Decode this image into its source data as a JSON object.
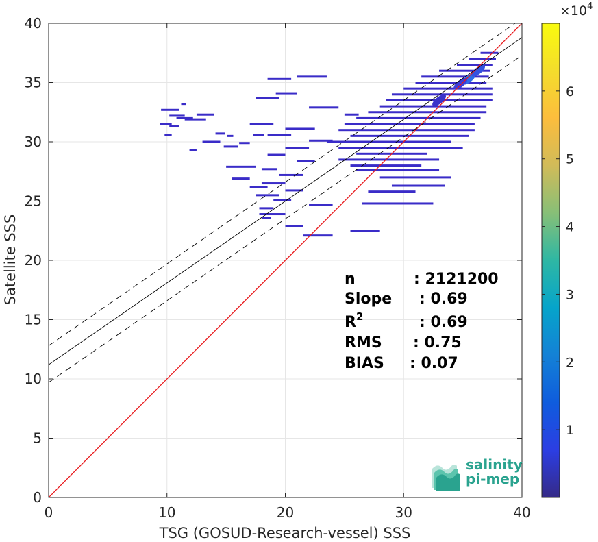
{
  "chart_data": {
    "type": "heatmap",
    "title": "",
    "xlabel": "TSG (GOSUD-Research-vessel) SSS",
    "ylabel": "Satellite SSS",
    "xlim": [
      0,
      40
    ],
    "ylim": [
      0,
      40
    ],
    "x_ticks": [
      "0",
      "10",
      "20",
      "30",
      "40"
    ],
    "y_ticks": [
      "0",
      "5",
      "10",
      "15",
      "20",
      "25",
      "30",
      "35",
      "40"
    ],
    "grid": true,
    "colormap": "parula",
    "colorbar": {
      "range": [
        0,
        70000
      ],
      "ticks": [
        "1",
        "2",
        "3",
        "4",
        "5",
        "6"
      ],
      "tick_values": [
        10000,
        20000,
        30000,
        40000,
        50000,
        60000
      ],
      "exponent_label": "×10",
      "exponent_power": "4"
    },
    "lines": [
      {
        "name": "identity",
        "slope": 1.0,
        "intercept": 0.0,
        "color": "#e8191c",
        "style": "solid"
      },
      {
        "name": "regression",
        "slope": 0.69,
        "intercept": 11.2,
        "color": "#000000",
        "style": "solid"
      },
      {
        "name": "regression+rms",
        "slope": 0.69,
        "intercept": 12.8,
        "color": "#000000",
        "style": "dashed"
      },
      {
        "name": "regression-rms",
        "slope": 0.69,
        "intercept": 9.7,
        "color": "#000000",
        "style": "dashed"
      }
    ],
    "density_segments": [
      {
        "y": 32.2,
        "x0": 10.2,
        "x1": 11.5
      },
      {
        "y": 32.7,
        "x0": 9.5,
        "x1": 11.0
      },
      {
        "y": 31.9,
        "x0": 11.5,
        "x1": 13.3
      },
      {
        "y": 32.0,
        "x0": 10.8,
        "x1": 12.2
      },
      {
        "y": 31.5,
        "x0": 9.4,
        "x1": 10.4
      },
      {
        "y": 33.2,
        "x0": 11.2,
        "x1": 11.6
      },
      {
        "y": 31.3,
        "x0": 10.2,
        "x1": 11.0
      },
      {
        "y": 32.3,
        "x0": 12.5,
        "x1": 14.0
      },
      {
        "y": 30.7,
        "x0": 14.1,
        "x1": 14.9
      },
      {
        "y": 30.6,
        "x0": 17.3,
        "x1": 18.2
      },
      {
        "y": 30.6,
        "x0": 9.8,
        "x1": 10.4
      },
      {
        "y": 30.5,
        "x0": 15.1,
        "x1": 15.6
      },
      {
        "y": 30.0,
        "x0": 13.0,
        "x1": 14.5
      },
      {
        "y": 29.9,
        "x0": 16.1,
        "x1": 17.0
      },
      {
        "y": 29.6,
        "x0": 14.8,
        "x1": 16.0
      },
      {
        "y": 29.3,
        "x0": 11.9,
        "x1": 12.5
      },
      {
        "y": 35.3,
        "x0": 18.5,
        "x1": 20.5
      },
      {
        "y": 35.5,
        "x0": 21.0,
        "x1": 23.5
      },
      {
        "y": 34.1,
        "x0": 19.2,
        "x1": 21.0
      },
      {
        "y": 33.7,
        "x0": 17.5,
        "x1": 19.5
      },
      {
        "y": 32.9,
        "x0": 22.0,
        "x1": 24.5
      },
      {
        "y": 32.3,
        "x0": 25.0,
        "x1": 26.2
      },
      {
        "y": 31.5,
        "x0": 17.0,
        "x1": 19.0
      },
      {
        "y": 31.1,
        "x0": 20.0,
        "x1": 22.5
      },
      {
        "y": 30.6,
        "x0": 18.5,
        "x1": 20.5
      },
      {
        "y": 30.1,
        "x0": 22.0,
        "x1": 24.0
      },
      {
        "y": 29.5,
        "x0": 20.0,
        "x1": 22.0
      },
      {
        "y": 28.9,
        "x0": 18.5,
        "x1": 20.0
      },
      {
        "y": 28.4,
        "x0": 21.0,
        "x1": 22.5
      },
      {
        "y": 27.9,
        "x0": 15.0,
        "x1": 17.5
      },
      {
        "y": 27.7,
        "x0": 18.0,
        "x1": 19.3
      },
      {
        "y": 27.2,
        "x0": 19.5,
        "x1": 21.5
      },
      {
        "y": 26.9,
        "x0": 15.5,
        "x1": 17.0
      },
      {
        "y": 26.5,
        "x0": 18.0,
        "x1": 20.0
      },
      {
        "y": 26.2,
        "x0": 17.0,
        "x1": 18.5
      },
      {
        "y": 25.9,
        "x0": 20.0,
        "x1": 21.5
      },
      {
        "y": 25.5,
        "x0": 17.5,
        "x1": 19.5
      },
      {
        "y": 25.1,
        "x0": 19.0,
        "x1": 20.5
      },
      {
        "y": 24.7,
        "x0": 22.0,
        "x1": 24.0
      },
      {
        "y": 24.4,
        "x0": 17.8,
        "x1": 19.0
      },
      {
        "y": 23.9,
        "x0": 17.8,
        "x1": 20.0
      },
      {
        "y": 23.6,
        "x0": 18.0,
        "x1": 18.8
      },
      {
        "y": 22.9,
        "x0": 20.0,
        "x1": 21.5
      },
      {
        "y": 22.1,
        "x0": 21.5,
        "x1": 24.0
      },
      {
        "y": 22.5,
        "x0": 25.5,
        "x1": 28.0
      },
      {
        "y": 24.8,
        "x0": 26.5,
        "x1": 32.5
      },
      {
        "y": 25.8,
        "x0": 27.0,
        "x1": 31.0
      },
      {
        "y": 26.3,
        "x0": 29.0,
        "x1": 33.5
      },
      {
        "y": 27.0,
        "x0": 28.0,
        "x1": 34.0
      },
      {
        "y": 27.6,
        "x0": 26.0,
        "x1": 33.0
      },
      {
        "y": 28.0,
        "x0": 25.5,
        "x1": 31.5
      },
      {
        "y": 28.5,
        "x0": 24.5,
        "x1": 33.0
      },
      {
        "y": 29.0,
        "x0": 26.0,
        "x1": 32.0
      },
      {
        "y": 29.5,
        "x0": 24.5,
        "x1": 35.0
      },
      {
        "y": 30.0,
        "x0": 23.5,
        "x1": 34.0
      },
      {
        "y": 30.5,
        "x0": 25.5,
        "x1": 35.5
      },
      {
        "y": 31.0,
        "x0": 24.5,
        "x1": 36.0
      },
      {
        "y": 31.5,
        "x0": 25.0,
        "x1": 36.0
      },
      {
        "y": 32.0,
        "x0": 26.0,
        "x1": 36.5
      },
      {
        "y": 32.5,
        "x0": 27.0,
        "x1": 37.0
      },
      {
        "y": 33.0,
        "x0": 28.0,
        "x1": 37.0
      },
      {
        "y": 33.5,
        "x0": 28.5,
        "x1": 37.5
      },
      {
        "y": 34.0,
        "x0": 29.0,
        "x1": 37.5
      },
      {
        "y": 34.5,
        "x0": 30.0,
        "x1": 37.5
      },
      {
        "y": 35.0,
        "x0": 31.0,
        "x1": 37.0
      },
      {
        "y": 35.5,
        "x0": 31.5,
        "x1": 37.2
      },
      {
        "y": 36.0,
        "x0": 33.0,
        "x1": 37.3
      },
      {
        "y": 36.5,
        "x0": 34.5,
        "x1": 37.5
      },
      {
        "y": 37.0,
        "x0": 35.5,
        "x1": 37.8
      },
      {
        "y": 37.5,
        "x0": 36.5,
        "x1": 38.0
      }
    ],
    "hotspots": [
      {
        "x": 35.5,
        "y": 35.3,
        "count": 14000
      },
      {
        "x": 36.3,
        "y": 36.0,
        "count": 9000
      },
      {
        "x": 34.8,
        "y": 34.9,
        "count": 5000
      },
      {
        "x": 33.0,
        "y": 33.5,
        "count": 3000
      }
    ],
    "stats": [
      {
        "key": "n",
        "value": ": 2121200"
      },
      {
        "key": "Slope",
        "value": ": 0.69"
      },
      {
        "key": "R",
        "superscript": "2",
        "value": ": 0.69"
      },
      {
        "key": "RMS",
        "value": ": 0.75"
      },
      {
        "key": "BIAS",
        "value": ": 0.07"
      }
    ]
  },
  "logo": {
    "line1": "salinity",
    "line2": "pi-mep"
  }
}
